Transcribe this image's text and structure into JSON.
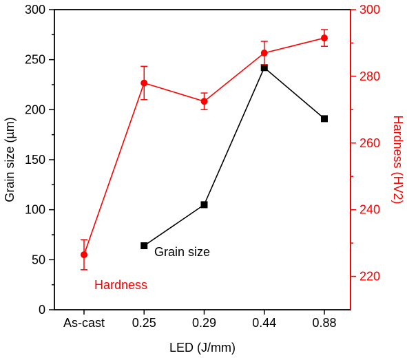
{
  "chart_data": {
    "type": "line",
    "xlabel": "LED (J/mm)",
    "categories": [
      "As-cast",
      "0.25",
      "0.29",
      "0.44",
      "0.88"
    ],
    "left_axis": {
      "label": "Grain size (µm)",
      "range": [
        0,
        300
      ],
      "ticks": [
        "0",
        "50",
        "100",
        "150",
        "200",
        "250",
        "300"
      ],
      "color": "#000000"
    },
    "right_axis": {
      "label": "Hardness (HV2)",
      "range": [
        210,
        300
      ],
      "ticks": [
        "220",
        "240",
        "260",
        "280",
        "300"
      ],
      "color": "#ff0000"
    },
    "series": [
      {
        "name": "Grain size",
        "axis": "left",
        "color": "#000000",
        "marker": "square",
        "points": [
          {
            "x": "0.25",
            "y": 64
          },
          {
            "x": "0.29",
            "y": 105
          },
          {
            "x": "0.44",
            "y": 242
          },
          {
            "x": "0.88",
            "y": 191
          }
        ]
      },
      {
        "name": "Hardness",
        "axis": "right",
        "color": "#ff0000",
        "marker": "circle",
        "points": [
          {
            "x": "As-cast",
            "y": 226.5,
            "err": 4.5
          },
          {
            "x": "0.25",
            "y": 278,
            "err": 5.0
          },
          {
            "x": "0.29",
            "y": 272.5,
            "err": 2.5
          },
          {
            "x": "0.44",
            "y": 287,
            "err": 3.5
          },
          {
            "x": "0.88",
            "y": 291.5,
            "err": 2.5
          }
        ]
      }
    ],
    "annotations": [
      {
        "text": "Grain size",
        "color": "#000000"
      },
      {
        "text": "Hardness",
        "color": "#ff0000"
      }
    ]
  }
}
